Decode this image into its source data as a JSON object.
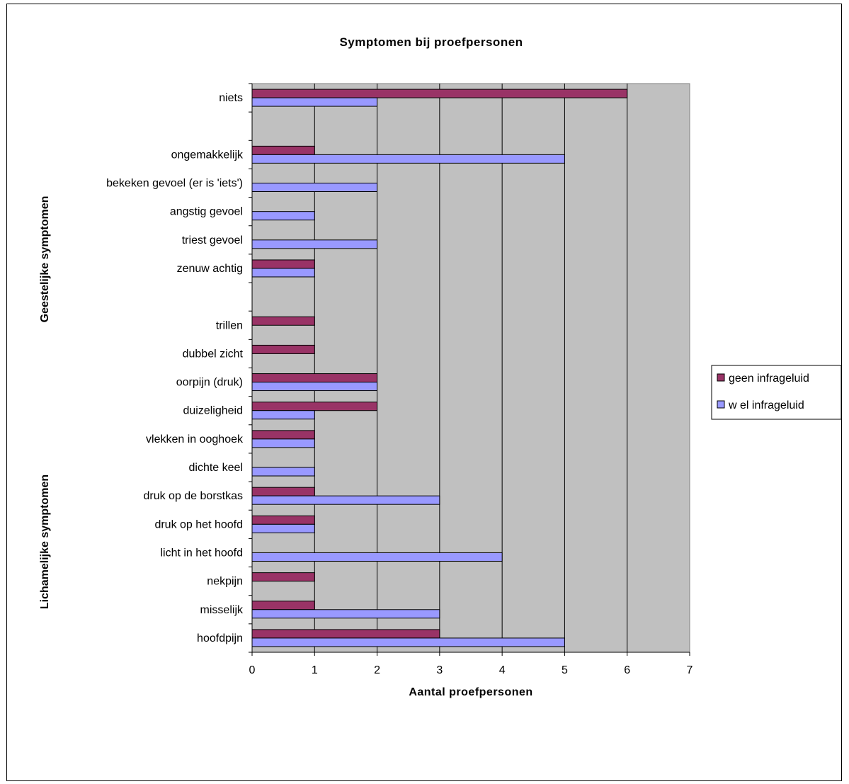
{
  "chart_data": {
    "type": "bar",
    "orientation": "horizontal",
    "title": "Symptomen bij proefpersonen",
    "xlabel": "Aantal proefpersonen",
    "xlim": [
      0,
      7
    ],
    "xticks": [
      0,
      1,
      2,
      3,
      4,
      5,
      6,
      7
    ],
    "grid": true,
    "legend_position": "right",
    "group_labels": [
      "Geestelijke symptomen",
      "Lichamelijke symptomen"
    ],
    "categories": [
      "niets",
      "",
      "ongemakkelijk",
      "bekeken gevoel (er is 'iets')",
      "angstig gevoel",
      "triest gevoel",
      "zenuw achtig",
      "",
      "trillen",
      "dubbel zicht",
      "oorpijn (druk)",
      "duizeligheid",
      "vlekken in ooghoek",
      "dichte keel",
      "druk op de borstkas",
      "druk op het hoofd",
      "licht in het hoofd",
      "nekpijn",
      "misselijk",
      "hoofdpijn"
    ],
    "series": [
      {
        "name": "geen infrageluid",
        "color": "#993366",
        "values": [
          6,
          null,
          1,
          0,
          0,
          0,
          1,
          null,
          1,
          1,
          2,
          2,
          1,
          0,
          1,
          1,
          0,
          1,
          1,
          3
        ]
      },
      {
        "name": "w el infrageluid",
        "color": "#9999ff",
        "values": [
          2,
          null,
          5,
          2,
          1,
          2,
          1,
          null,
          0,
          0,
          2,
          1,
          1,
          1,
          3,
          1,
          4,
          0,
          3,
          5
        ]
      }
    ],
    "colors": {
      "plot_background": "#c0c0c0",
      "gridline": "#000000"
    }
  }
}
